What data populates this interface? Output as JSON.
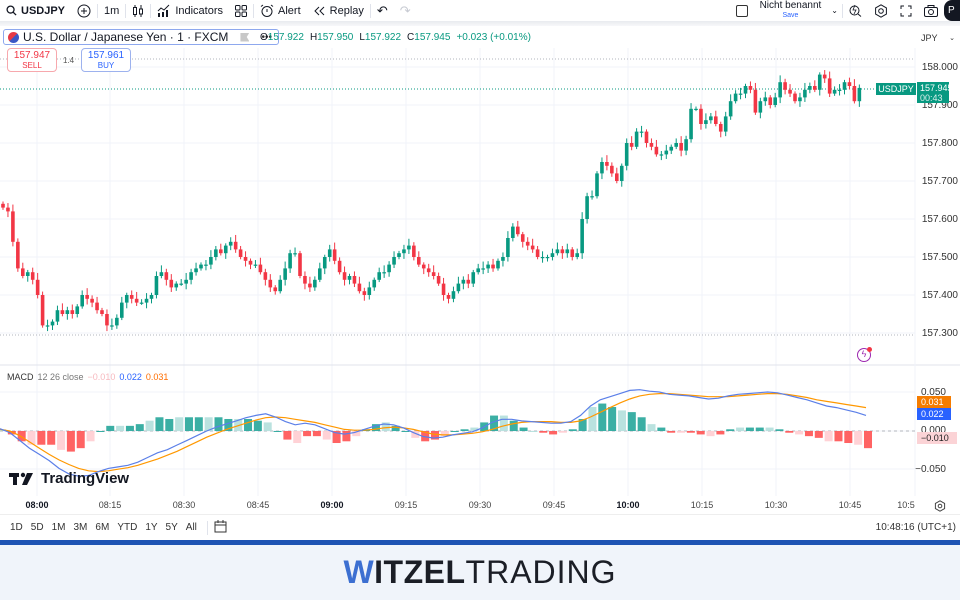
{
  "toolbar": {
    "symbol": "USDJPY",
    "interval": "1m",
    "indicators_label": "Indicators",
    "alert_label": "Alert",
    "replay_label": "Replay",
    "layout_name": "Nicht benannt",
    "save_label": "Save",
    "avatar_initial": "P"
  },
  "legend": {
    "title": "U.S. Dollar / Japanese Yen · 1 · FXCM",
    "open_label": "O",
    "open": "157.922",
    "high_label": "H",
    "high": "157.950",
    "low_label": "L",
    "low": "157.922",
    "close_label": "C",
    "close": "157.945",
    "change": "+0.023 (+0.01%)",
    "more": "•••"
  },
  "trade": {
    "sell_price": "157.947",
    "sell_label": "SELL",
    "spread": "1.4",
    "buy_price": "157.961",
    "buy_label": "BUY"
  },
  "price_axis": {
    "currency": "JPY",
    "ticks": [
      "158.000",
      "157.900",
      "157.800",
      "157.700",
      "157.600",
      "157.500",
      "157.400",
      "157.300"
    ],
    "last_price": "157.945",
    "countdown": "00:43",
    "symbol_tag": "USDJPY"
  },
  "macd": {
    "name": "MACD",
    "params": "12 26 close",
    "histogram": "−0.010",
    "macd_value": "0.022",
    "signal_value": "0.031",
    "ticks": [
      "0.050",
      "0.000",
      "−0.050"
    ],
    "colors": {
      "macd": "#2962ff",
      "signal": "#ff6d00",
      "hist_pos": "#26a69a",
      "hist_neg": "#ff5252"
    }
  },
  "time_axis": {
    "labels": [
      "08:00",
      "08:15",
      "08:30",
      "08:45",
      "09:00",
      "09:15",
      "09:30",
      "09:45",
      "10:00",
      "10:15",
      "10:30",
      "10:45",
      "10:5"
    ],
    "bold": [
      "08:00",
      "09:00",
      "10:00"
    ]
  },
  "bottom_bar": {
    "ranges": [
      "1D",
      "5D",
      "1M",
      "3M",
      "6M",
      "YTD",
      "1Y",
      "5Y",
      "All"
    ],
    "clock": "10:48:16 (UTC+1)"
  },
  "branding": {
    "tradingview": "TradingView",
    "witzel_w": "W",
    "witzel_rest": "ITZEL",
    "trading": "TRADING"
  },
  "colors": {
    "up": "#089981",
    "down": "#f23645",
    "accent": "#2962ff"
  }
}
